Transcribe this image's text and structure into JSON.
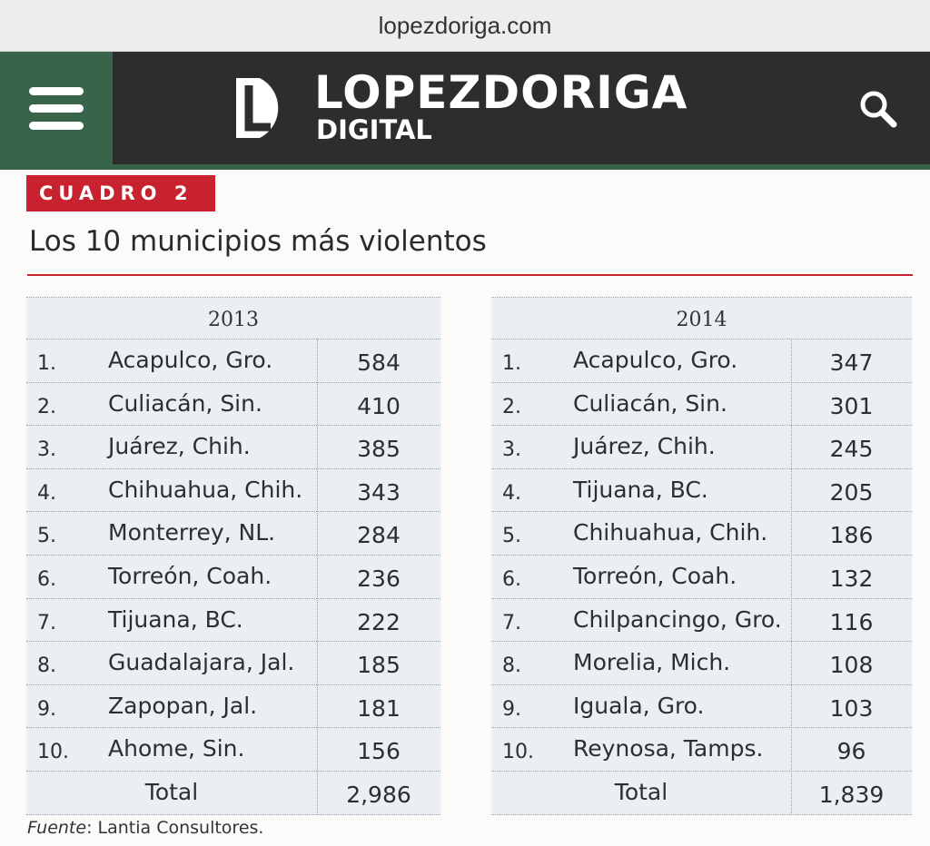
{
  "browser": {
    "url": "lopezdoriga.com"
  },
  "header": {
    "menu_icon": "hamburger-menu-icon",
    "logo_title": "LOPEZDORIGA",
    "logo_subtitle": "DIGITAL",
    "search_icon": "search-icon",
    "colors": {
      "nav_bg": "#2d2d2d",
      "accent_green": "#38644b"
    }
  },
  "article": {
    "badge": "CUADRO 2",
    "title": "Los 10 municipios más violentos",
    "accent_color": "#c8222f",
    "tables": [
      {
        "year": "2013",
        "rows": [
          {
            "rank": "1.",
            "name": "Acapulco, Gro.",
            "value": "584"
          },
          {
            "rank": "2.",
            "name": "Culiacán, Sin.",
            "value": "410"
          },
          {
            "rank": "3.",
            "name": "Juárez, Chih.",
            "value": "385"
          },
          {
            "rank": "4.",
            "name": "Chihuahua, Chih.",
            "value": "343"
          },
          {
            "rank": "5.",
            "name": "Monterrey, NL.",
            "value": "284"
          },
          {
            "rank": "6.",
            "name": "Torreón, Coah.",
            "value": "236"
          },
          {
            "rank": "7.",
            "name": "Tijuana, BC.",
            "value": "222"
          },
          {
            "rank": "8.",
            "name": "Guadalajara, Jal.",
            "value": "185"
          },
          {
            "rank": "9.",
            "name": "Zapopan, Jal.",
            "value": "181"
          },
          {
            "rank": "10.",
            "name": "Ahome, Sin.",
            "value": "156"
          }
        ],
        "total_label": "Total",
        "total_value": "2,986"
      },
      {
        "year": "2014",
        "rows": [
          {
            "rank": "1.",
            "name": "Acapulco, Gro.",
            "value": "347"
          },
          {
            "rank": "2.",
            "name": "Culiacán, Sin.",
            "value": "301"
          },
          {
            "rank": "3.",
            "name": "Juárez, Chih.",
            "value": "245"
          },
          {
            "rank": "4.",
            "name": "Tijuana, BC.",
            "value": "205"
          },
          {
            "rank": "5.",
            "name": "Chihuahua, Chih.",
            "value": "186"
          },
          {
            "rank": "6.",
            "name": "Torreón, Coah.",
            "value": "132"
          },
          {
            "rank": "7.",
            "name": "Chilpancingo, Gro.",
            "value": "116"
          },
          {
            "rank": "8.",
            "name": "Morelia, Mich.",
            "value": "108"
          },
          {
            "rank": "9.",
            "name": "Iguala, Gro.",
            "value": "103"
          },
          {
            "rank": "10.",
            "name": "Reynosa, Tamps.",
            "value": "96"
          }
        ],
        "total_label": "Total",
        "total_value": "1,839"
      }
    ],
    "source_label": "Fuente",
    "source_text": ": Lantia Consultores."
  }
}
